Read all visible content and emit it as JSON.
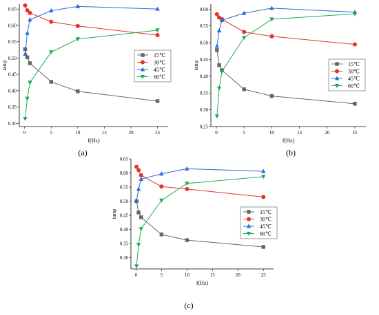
{
  "chart_data": [
    {
      "type": "line",
      "panel_label": "(a)",
      "xlabel": "f(Hz)",
      "ylabel": "tanφ",
      "xlim": [
        -1,
        27
      ],
      "ylim": [
        0.29,
        0.665
      ],
      "x_ticks": [
        0,
        5,
        10,
        15,
        20,
        25
      ],
      "x_tick_labels": [
        "0",
        "5",
        "10",
        "15",
        "20",
        "25"
      ],
      "y_ticks": [
        0.3,
        0.35,
        0.4,
        0.45,
        0.5,
        0.55,
        0.6,
        0.65
      ],
      "y_tick_labels": [
        "0.30",
        "0.35",
        "0.40",
        "0.45",
        "0.50",
        "0.55",
        "0.60",
        "0.65"
      ],
      "legend_position": "center-right",
      "series": [
        {
          "name": "15℃",
          "color": "#666666",
          "marker": "square",
          "x": [
            0.1,
            0.5,
            1,
            5,
            10,
            25
          ],
          "y": [
            0.527,
            0.502,
            0.484,
            0.427,
            0.398,
            0.368
          ]
        },
        {
          "name": "30℃",
          "color": "#e8322c",
          "marker": "circle",
          "x": [
            0.1,
            0.5,
            1,
            5,
            10,
            25
          ],
          "y": [
            0.661,
            0.646,
            0.638,
            0.611,
            0.598,
            0.57
          ]
        },
        {
          "name": "45℃",
          "color": "#1f6fd6",
          "marker": "triangle-up",
          "x": [
            0.1,
            0.5,
            1,
            5,
            10,
            25
          ],
          "y": [
            0.512,
            0.576,
            0.617,
            0.645,
            0.658,
            0.65
          ]
        },
        {
          "name": "60℃",
          "color": "#1fae55",
          "marker": "triangle-down",
          "x": [
            0.1,
            0.5,
            1,
            5,
            10,
            25
          ],
          "y": [
            0.314,
            0.376,
            0.425,
            0.518,
            0.558,
            0.585
          ]
        }
      ]
    },
    {
      "type": "line",
      "panel_label": "(b)",
      "xlabel": "f(Hz)",
      "ylabel": "tanφ",
      "xlim": [
        -1,
        27
      ],
      "ylim": [
        0.25,
        0.615
      ],
      "x_ticks": [
        0,
        5,
        10,
        15,
        20,
        25
      ],
      "x_tick_labels": [
        "0",
        "5",
        "10",
        "15",
        "20",
        "25"
      ],
      "y_ticks": [
        0.25,
        0.3,
        0.35,
        0.4,
        0.45,
        0.5,
        0.55,
        0.6
      ],
      "y_tick_labels": [
        "0.25",
        "0.30",
        "0.35",
        "0.40",
        "0.45",
        "0.50",
        "0.55",
        "0.60"
      ],
      "legend_position": "center-right",
      "series": [
        {
          "name": "15℃",
          "color": "#666666",
          "marker": "square",
          "x": [
            0.1,
            0.5,
            1,
            5,
            10,
            25
          ],
          "y": [
            0.478,
            0.433,
            0.418,
            0.361,
            0.341,
            0.318
          ]
        },
        {
          "name": "30℃",
          "color": "#e8322c",
          "marker": "circle",
          "x": [
            0.1,
            0.5,
            1,
            5,
            10,
            25
          ],
          "y": [
            0.585,
            0.575,
            0.57,
            0.532,
            0.519,
            0.495
          ]
        },
        {
          "name": "45℃",
          "color": "#1f6fd6",
          "marker": "triangle-up",
          "x": [
            0.1,
            0.5,
            1,
            5,
            10,
            25
          ],
          "y": [
            0.49,
            0.536,
            0.567,
            0.588,
            0.603,
            0.591
          ]
        },
        {
          "name": "60℃",
          "color": "#1fae55",
          "marker": "triangle-down",
          "x": [
            0.1,
            0.5,
            1,
            5,
            10,
            25
          ],
          "y": [
            0.281,
            0.364,
            0.414,
            0.515,
            0.57,
            0.586
          ]
        }
      ]
    },
    {
      "type": "line",
      "panel_label": "(c)",
      "xlabel": "f(Hz)",
      "ylabel": "tanφ",
      "xlim": [
        -1,
        27
      ],
      "ylim": [
        0.26,
        0.65
      ],
      "x_ticks": [
        0,
        5,
        10,
        15,
        20,
        25
      ],
      "x_tick_labels": [
        "0",
        "5",
        "10",
        "15",
        "20",
        "25"
      ],
      "y_ticks": [
        0.3,
        0.35,
        0.4,
        0.45,
        0.5,
        0.55,
        0.6,
        0.65
      ],
      "y_tick_labels": [
        "0.30",
        "0.35",
        "0.40",
        "0.45",
        "0.50",
        "0.55",
        "0.60",
        "0.65"
      ],
      "legend_position": "center-right",
      "series": [
        {
          "name": "15℃",
          "color": "#666666",
          "marker": "square",
          "x": [
            0.1,
            0.5,
            1,
            5,
            10,
            25
          ],
          "y": [
            0.5,
            0.46,
            0.443,
            0.382,
            0.362,
            0.338
          ]
        },
        {
          "name": "30℃",
          "color": "#e8322c",
          "marker": "circle",
          "x": [
            0.1,
            0.5,
            1,
            5,
            10,
            25
          ],
          "y": [
            0.622,
            0.61,
            0.592,
            0.552,
            0.543,
            0.515
          ]
        },
        {
          "name": "45℃",
          "color": "#1f6fd6",
          "marker": "triangle-up",
          "x": [
            0.1,
            0.5,
            1,
            5,
            10,
            25
          ],
          "y": [
            0.502,
            0.543,
            0.578,
            0.597,
            0.615,
            0.606
          ]
        },
        {
          "name": "60℃",
          "color": "#1fae55",
          "marker": "triangle-down",
          "x": [
            0.1,
            0.5,
            1,
            5,
            10,
            25
          ],
          "y": [
            0.27,
            0.346,
            0.402,
            0.503,
            0.563,
            0.587
          ]
        }
      ]
    }
  ]
}
